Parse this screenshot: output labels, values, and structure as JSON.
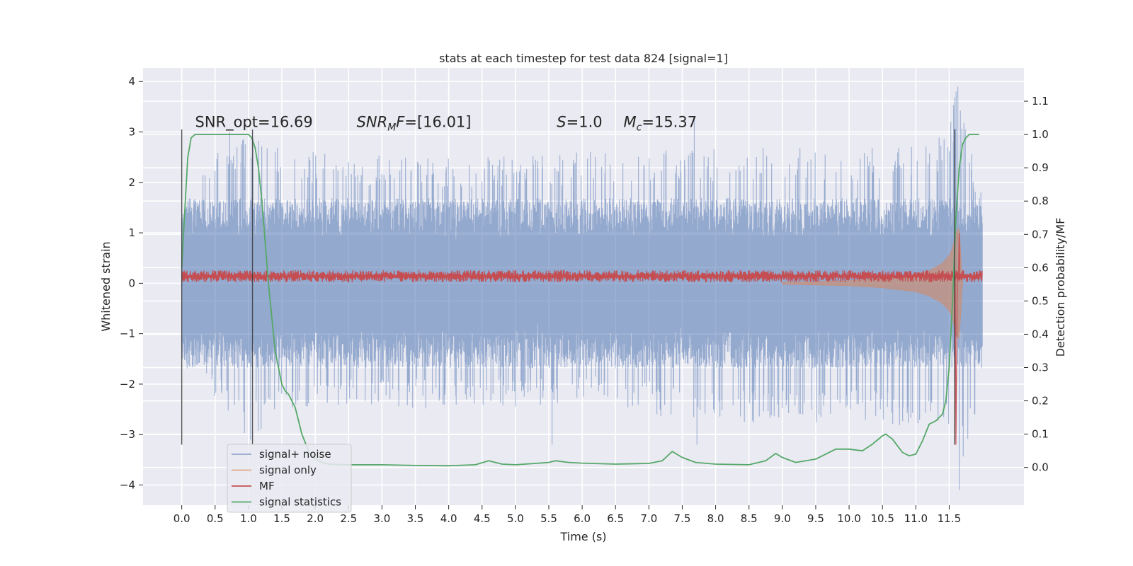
{
  "chart_data": {
    "type": "line",
    "title": "stats at each timestep for test data 824 [signal=1]",
    "xlabel": "Time (s)",
    "ylabel": "Whitened strain",
    "y2label": "Detection probability/MF",
    "xlim": [
      -0.58,
      12.62
    ],
    "ylim": [
      -4.4,
      4.27
    ],
    "y2lim": [
      -0.1133,
      1.2
    ],
    "grid": true,
    "legend_position": "lower-left",
    "x_ticks": [
      0.0,
      0.5,
      1.0,
      1.5,
      2.0,
      2.5,
      3.0,
      3.5,
      4.0,
      4.5,
      5.0,
      5.5,
      6.0,
      6.5,
      7.0,
      7.5,
      8.0,
      8.5,
      9.0,
      9.5,
      10.0,
      10.5,
      11.0,
      11.5
    ],
    "x_tick_labels": [
      "0.0",
      "0.5",
      "1.0",
      "1.5",
      "2.0",
      "2.5",
      "3.0",
      "3.5",
      "4.0",
      "4.5",
      "5.0",
      "5.5",
      "6.0",
      "6.5",
      "7.0",
      "7.5",
      "8.0",
      "8.5",
      "9.0",
      "9.5",
      "10.0",
      "10.5",
      "11.0",
      "11.5"
    ],
    "y_ticks": [
      4,
      3,
      2,
      1,
      0,
      -1,
      -2,
      -3,
      -4
    ],
    "y_tick_labels": [
      "4",
      "3",
      "2",
      "1",
      "0",
      "−1",
      "−2",
      "−3",
      "−4"
    ],
    "y2_ticks": [
      1.1,
      1.0,
      0.9,
      0.8,
      0.7,
      0.6,
      0.5,
      0.4,
      0.3,
      0.2,
      0.1,
      0.0
    ],
    "y2_tick_labels": [
      "1.1",
      "1.0",
      "0.9",
      "0.8",
      "0.7",
      "0.6",
      "0.5",
      "0.4",
      "0.3",
      "0.2",
      "0.1",
      "0.0"
    ],
    "annotations": [
      {
        "id": "snr-opt",
        "parts": [
          {
            "t": "SNR_opt=16.69"
          }
        ],
        "x": 0.2,
        "y": 3.1
      },
      {
        "id": "snr-mf",
        "parts": [
          {
            "t": "SNR",
            "i": true
          },
          {
            "t": "M",
            "i": true,
            "sub": true
          },
          {
            "t": "F",
            "i": true
          },
          {
            "t": "=[16.01]"
          }
        ],
        "x": 2.62,
        "y": 3.1
      },
      {
        "id": "s-value",
        "parts": [
          {
            "t": "S",
            "i": true
          },
          {
            "t": "=1.0"
          }
        ],
        "x": 5.62,
        "y": 3.1
      },
      {
        "id": "chirp-mass",
        "parts": [
          {
            "t": "M",
            "i": true
          },
          {
            "t": "c",
            "i": true,
            "sub": true
          },
          {
            "t": "=15.37"
          }
        ],
        "x": 6.62,
        "y": 3.1
      }
    ],
    "vertical_lines": [
      {
        "x": 0.0,
        "y_range": [
          -3.2,
          3.05
        ]
      },
      {
        "x": 1.06,
        "y_range": [
          -3.2,
          3.05
        ]
      },
      {
        "x": 11.58,
        "y_range": [
          -3.2,
          3.05
        ]
      }
    ],
    "series": [
      {
        "name": "signal+ noise",
        "color": "#4c72b0",
        "opacity": 0.55,
        "x_range": [
          0.0,
          12.0
        ],
        "baseline_amplitude": 1.25,
        "envelope": {
          "x": [
            0.0,
            0.5,
            1.0,
            2.0,
            4.0,
            6.0,
            8.0,
            10.0,
            11.0,
            11.5,
            11.6,
            12.0
          ],
          "max": [
            1.5,
            2.8,
            3.0,
            2.6,
            2.5,
            2.6,
            2.7,
            2.7,
            2.8,
            3.0,
            3.9,
            1.8
          ],
          "min": [
            -1.8,
            -2.3,
            -3.1,
            -2.5,
            -2.5,
            -2.4,
            -2.8,
            -2.8,
            -2.9,
            -3.0,
            -4.1,
            -2.2
          ]
        },
        "spikes": [
          {
            "x": 0.72,
            "y": 3.0
          },
          {
            "x": 1.03,
            "y": -3.1
          },
          {
            "x": 5.55,
            "y": -3.2
          },
          {
            "x": 7.68,
            "y": 3.3
          },
          {
            "x": 7.72,
            "y": -3.2
          },
          {
            "x": 11.63,
            "y": 3.9
          },
          {
            "x": 11.65,
            "y": -4.1
          }
        ]
      },
      {
        "name": "signal only",
        "color": "#dd8452",
        "opacity": 0.5,
        "envelope": {
          "x": [
            9.0,
            10.0,
            10.5,
            11.0,
            11.2,
            11.4,
            11.5,
            11.55,
            11.6,
            11.65,
            11.7,
            11.72
          ],
          "amplitude": [
            0.02,
            0.05,
            0.09,
            0.17,
            0.25,
            0.4,
            0.55,
            0.7,
            1.0,
            1.1,
            0.0,
            0.0
          ]
        }
      },
      {
        "name": "MF",
        "color": "#c44e52",
        "x_range": [
          0.0,
          12.0
        ],
        "mean": 0.1,
        "band": [
          0.02,
          0.26
        ],
        "peak": {
          "x": 11.65,
          "y": 1.0
        },
        "dip": {
          "x": 11.6,
          "y": -3.2
        }
      },
      {
        "name": "signal statistics",
        "color": "#55a868",
        "axis": "right",
        "x": [
          0.0,
          0.04,
          0.09,
          0.14,
          0.2,
          0.3,
          0.5,
          0.8,
          1.0,
          1.05,
          1.1,
          1.15,
          1.2,
          1.3,
          1.4,
          1.5,
          1.55,
          1.6,
          1.7,
          1.8,
          1.9,
          2.0,
          2.1,
          2.2,
          2.5,
          3.0,
          3.5,
          4.0,
          4.4,
          4.6,
          4.8,
          5.0,
          5.3,
          5.5,
          5.6,
          5.8,
          6.0,
          6.5,
          7.0,
          7.2,
          7.35,
          7.5,
          7.7,
          8.0,
          8.5,
          8.75,
          8.9,
          9.0,
          9.2,
          9.5,
          9.8,
          10.0,
          10.2,
          10.35,
          10.5,
          10.55,
          10.65,
          10.8,
          10.9,
          11.0,
          11.1,
          11.2,
          11.3,
          11.4,
          11.45,
          11.5,
          11.55,
          11.6,
          11.65,
          11.7,
          11.75,
          11.8,
          11.9,
          11.95
        ],
        "y": [
          0.6,
          0.75,
          0.93,
          0.99,
          1.0,
          1.0,
          1.0,
          1.0,
          1.0,
          0.99,
          0.96,
          0.9,
          0.8,
          0.55,
          0.35,
          0.25,
          0.23,
          0.22,
          0.18,
          0.1,
          0.05,
          0.025,
          0.015,
          0.01,
          0.008,
          0.008,
          0.006,
          0.005,
          0.008,
          0.02,
          0.01,
          0.008,
          0.012,
          0.015,
          0.02,
          0.015,
          0.013,
          0.01,
          0.012,
          0.02,
          0.048,
          0.03,
          0.015,
          0.01,
          0.008,
          0.02,
          0.042,
          0.03,
          0.015,
          0.025,
          0.055,
          0.055,
          0.05,
          0.07,
          0.095,
          0.1,
          0.085,
          0.045,
          0.035,
          0.04,
          0.08,
          0.13,
          0.14,
          0.16,
          0.2,
          0.3,
          0.5,
          0.75,
          0.9,
          0.97,
          0.99,
          1.0,
          1.0,
          1.0
        ]
      }
    ]
  }
}
